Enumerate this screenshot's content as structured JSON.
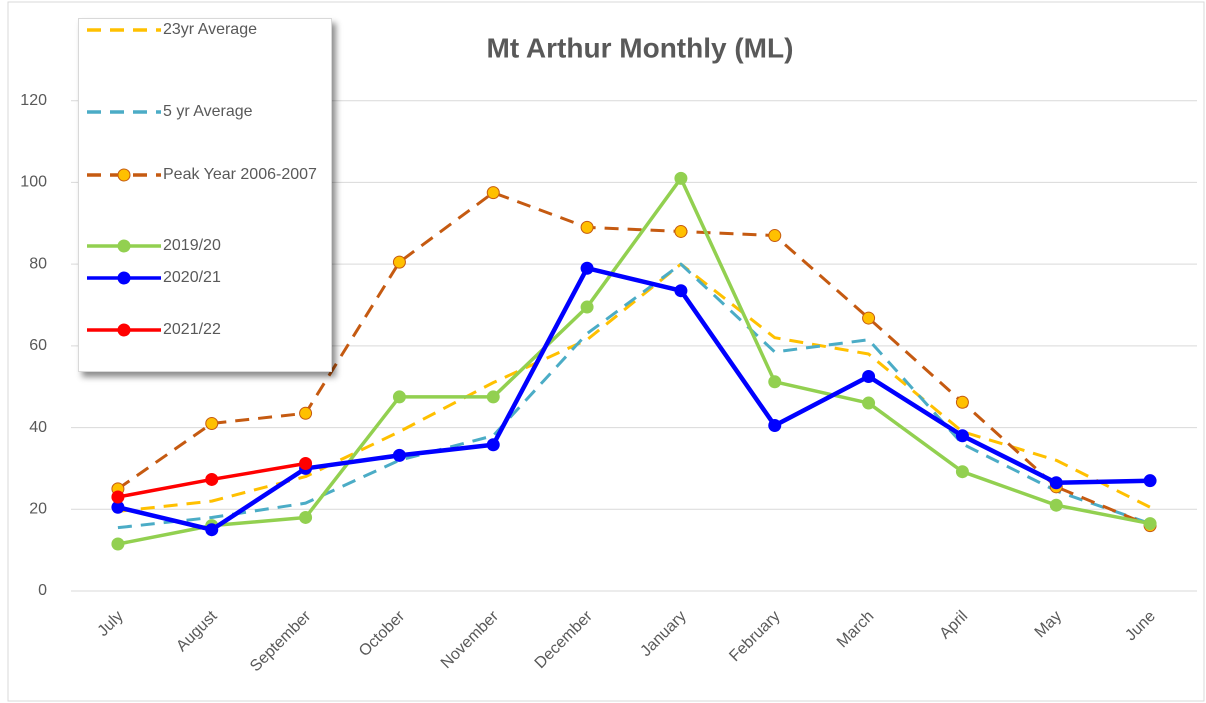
{
  "chart_data": {
    "type": "line",
    "title": "Mt Arthur Monthly (ML)",
    "categories": [
      "July",
      "August",
      "September",
      "October",
      "November",
      "December",
      "January",
      "February",
      "March",
      "April",
      "May",
      "June"
    ],
    "series": [
      {
        "name": "23yr Average",
        "color": "#ffc000",
        "dashed": true,
        "marker": false,
        "values": [
          19.5,
          22,
          28,
          39,
          51,
          61.5,
          80,
          62,
          58,
          39,
          32,
          20.5
        ]
      },
      {
        "name": "5 yr Average",
        "color": "#4bacc6",
        "dashed": true,
        "marker": false,
        "values": [
          15.5,
          18,
          21.5,
          32,
          38,
          63,
          80,
          58.5,
          61.5,
          36,
          24.5,
          16.5
        ]
      },
      {
        "name": "Peak Year 2006-2007",
        "color": "#c55a11",
        "marker_color": "#ffc000",
        "dashed": true,
        "marker": true,
        "values": [
          25,
          41,
          43.5,
          80.5,
          97.5,
          89,
          88,
          87,
          66.8,
          46.2,
          25.5,
          16
        ]
      },
      {
        "name": "2019/20",
        "color": "#92d050",
        "dashed": false,
        "marker": true,
        "values": [
          11.5,
          16,
          18,
          47.5,
          47.5,
          69.5,
          101,
          51.2,
          46,
          29.2,
          21,
          16.5
        ]
      },
      {
        "name": "2020/21",
        "color": "#0000ff",
        "dashed": false,
        "marker": true,
        "values": [
          20.5,
          15,
          30,
          33.2,
          35.8,
          79,
          73.5,
          40.5,
          52.5,
          38,
          26.5,
          27
        ]
      },
      {
        "name": "2021/22",
        "color": "#ff0000",
        "dashed": false,
        "marker": true,
        "values": [
          23,
          27.3,
          31.2,
          null,
          null,
          null,
          null,
          null,
          null,
          null,
          null,
          null
        ]
      }
    ],
    "ylim": [
      0,
      140
    ],
    "yticks": [
      0,
      20,
      40,
      60,
      80,
      100,
      120
    ],
    "grid": true
  }
}
